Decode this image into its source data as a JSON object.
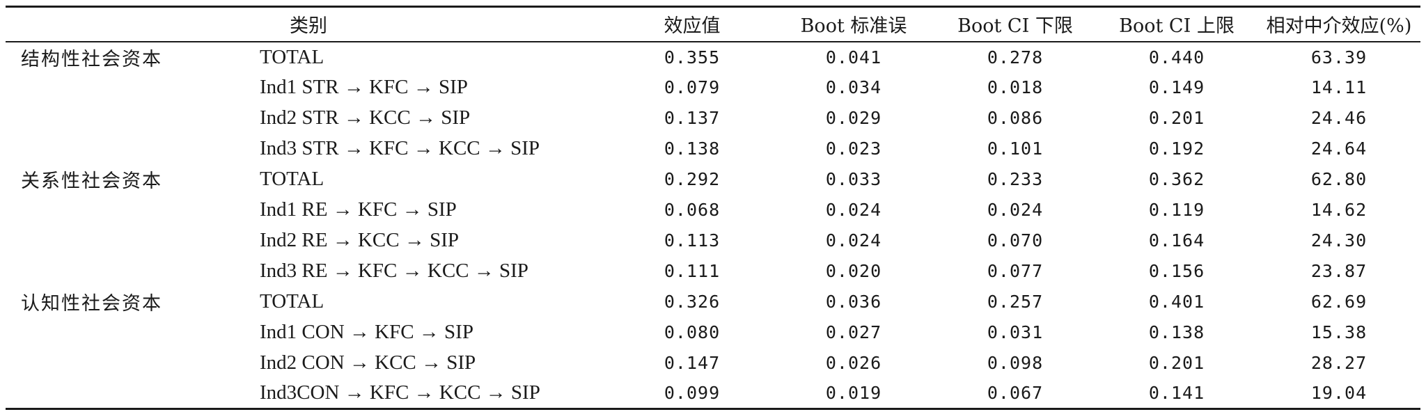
{
  "table": {
    "headers": {
      "category": "类别",
      "effect": "效应值",
      "boot_se": "Boot 标准误",
      "ci_low": "Boot CI 下限",
      "ci_high": "Boot CI 上限",
      "relative": "相对中介效应(%)"
    },
    "rows": [
      {
        "category": "结构性社会资本",
        "path": "TOTAL",
        "effect": "0.355",
        "se": "0.041",
        "ci_low": "0.278",
        "ci_high": "0.440",
        "relative": "63.39"
      },
      {
        "category": "",
        "path": "Ind1 STR → KFC → SIP",
        "effect": "0.079",
        "se": "0.034",
        "ci_low": "0.018",
        "ci_high": "0.149",
        "relative": "14.11"
      },
      {
        "category": "",
        "path": "Ind2 STR → KCC → SIP",
        "effect": "0.137",
        "se": "0.029",
        "ci_low": "0.086",
        "ci_high": "0.201",
        "relative": "24.46"
      },
      {
        "category": "",
        "path": "Ind3 STR → KFC → KCC → SIP",
        "effect": "0.138",
        "se": "0.023",
        "ci_low": "0.101",
        "ci_high": "0.192",
        "relative": "24.64"
      },
      {
        "category": "关系性社会资本",
        "path": "TOTAL",
        "effect": "0.292",
        "se": "0.033",
        "ci_low": "0.233",
        "ci_high": "0.362",
        "relative": "62.80"
      },
      {
        "category": "",
        "path": "Ind1 RE → KFC → SIP",
        "effect": "0.068",
        "se": "0.024",
        "ci_low": "0.024",
        "ci_high": "0.119",
        "relative": "14.62"
      },
      {
        "category": "",
        "path": "Ind2 RE → KCC → SIP",
        "effect": "0.113",
        "se": "0.024",
        "ci_low": "0.070",
        "ci_high": "0.164",
        "relative": "24.30"
      },
      {
        "category": "",
        "path": "Ind3 RE → KFC → KCC → SIP",
        "effect": "0.111",
        "se": "0.020",
        "ci_low": "0.077",
        "ci_high": "0.156",
        "relative": "23.87"
      },
      {
        "category": "认知性社会资本",
        "path": "TOTAL",
        "effect": "0.326",
        "se": "0.036",
        "ci_low": "0.257",
        "ci_high": "0.401",
        "relative": "62.69"
      },
      {
        "category": "",
        "path": "Ind1 CON → KFC → SIP",
        "effect": "0.080",
        "se": "0.027",
        "ci_low": "0.031",
        "ci_high": "0.138",
        "relative": "15.38"
      },
      {
        "category": "",
        "path": "Ind2 CON → KCC → SIP",
        "effect": "0.147",
        "se": "0.026",
        "ci_low": "0.098",
        "ci_high": "0.201",
        "relative": "28.27"
      },
      {
        "category": "",
        "path": "Ind3CON → KFC → KCC → SIP",
        "effect": "0.099",
        "se": "0.019",
        "ci_low": "0.067",
        "ci_high": "0.141",
        "relative": "19.04"
      }
    ]
  }
}
